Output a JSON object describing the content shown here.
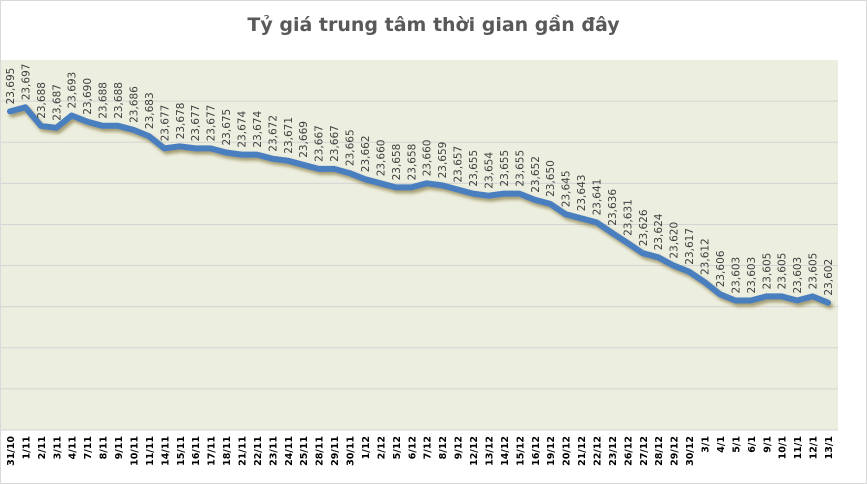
{
  "chart_data": {
    "type": "line",
    "title": "Tỷ giá trung tâm thời gian gần đây",
    "xlabel": "",
    "ylabel": "",
    "ylim": [
      23540,
      23720
    ],
    "grid": true,
    "legend": "none",
    "line_color": "#4a7ebf",
    "plot_background": "#eceedf",
    "categories": [
      "31/10",
      "1/11",
      "2/11",
      "3/11",
      "4/11",
      "7/11",
      "8/11",
      "9/11",
      "10/11",
      "11/11",
      "14/11",
      "15/11",
      "16/11",
      "17/11",
      "18/11",
      "21/11",
      "22/11",
      "23/11",
      "24/11",
      "25/11",
      "28/11",
      "29/11",
      "30/11",
      "1/12",
      "2/12",
      "5/12",
      "6/12",
      "7/12",
      "8/12",
      "9/12",
      "12/12",
      "13/12",
      "14/12",
      "15/12",
      "16/12",
      "19/12",
      "20/12",
      "21/12",
      "22/12",
      "23/12",
      "26/12",
      "27/12",
      "28/12",
      "29/12",
      "30/12",
      "3/1",
      "4/1",
      "5/1",
      "6/1",
      "9/1",
      "10/1",
      "11/1",
      "12/1",
      "13/1"
    ],
    "values": [
      23695,
      23697,
      23688,
      23687,
      23693,
      23690,
      23688,
      23688,
      23686,
      23683,
      23677,
      23678,
      23677,
      23677,
      23675,
      23674,
      23674,
      23672,
      23671,
      23669,
      23667,
      23667,
      23665,
      23662,
      23660,
      23658,
      23658,
      23660,
      23659,
      23657,
      23655,
      23654,
      23655,
      23655,
      23652,
      23650,
      23645,
      23643,
      23641,
      23636,
      23631,
      23626,
      23624,
      23620,
      23617,
      23612,
      23606,
      23603,
      23603,
      23605,
      23605,
      23603,
      23605,
      23602
    ],
    "data_labels": [
      "23,695",
      "23,697",
      "23,688",
      "23,687",
      "23,693",
      "23,690",
      "23,688",
      "23,688",
      "23,686",
      "23,683",
      "23,677",
      "23,678",
      "23,677",
      "23,677",
      "23,675",
      "23,674",
      "23,674",
      "23,672",
      "23,671",
      "23,669",
      "23,667",
      "23,667",
      "23,665",
      "23,662",
      "23,660",
      "23,658",
      "23,658",
      "23,660",
      "23,659",
      "23,657",
      "23,655",
      "23,654",
      "23,655",
      "23,655",
      "23,652",
      "23,650",
      "23,645",
      "23,643",
      "23,641",
      "23,636",
      "23,631",
      "23,626",
      "23,624",
      "23,620",
      "23,617",
      "23,612",
      "23,606",
      "23,603",
      "23,603",
      "23,605",
      "23,605",
      "23,603",
      "23,605",
      "23,602"
    ]
  }
}
